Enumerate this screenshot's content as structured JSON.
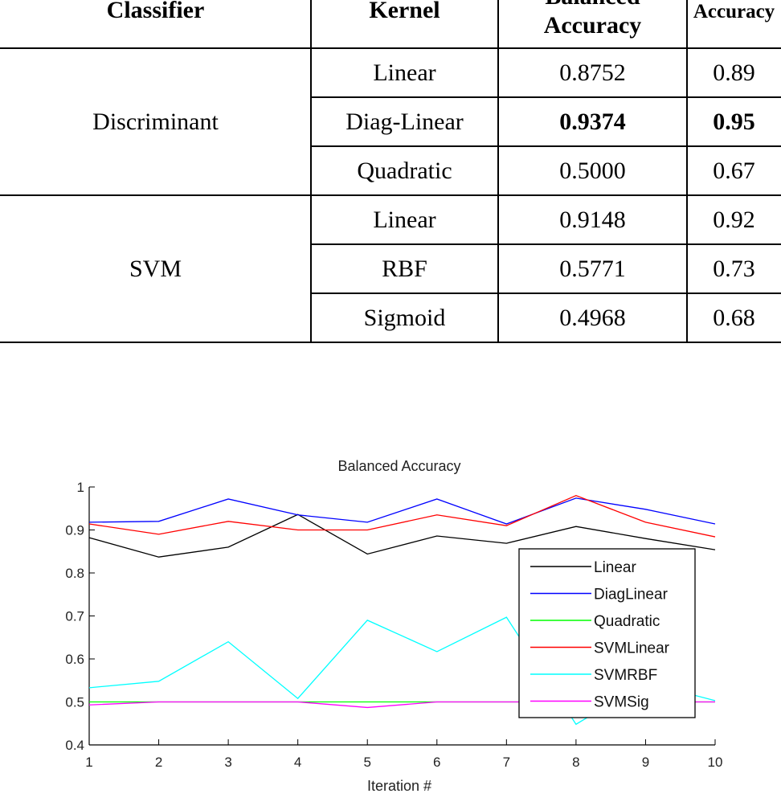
{
  "table": {
    "headers": [
      "Classifier",
      "Kernel",
      "Balanced",
      "Accuracy",
      "Accuracy"
    ],
    "groups": [
      {
        "classifier": "Discriminant",
        "rows": [
          {
            "kernel": "Linear",
            "balanced_accuracy": "0.8752",
            "accuracy": "0.89",
            "bold": false
          },
          {
            "kernel": "Diag-Linear",
            "balanced_accuracy": "0.9374",
            "accuracy": "0.95",
            "bold": true
          },
          {
            "kernel": "Quadratic",
            "balanced_accuracy": "0.5000",
            "accuracy": "0.67",
            "bold": false
          }
        ]
      },
      {
        "classifier": "SVM",
        "rows": [
          {
            "kernel": "Linear",
            "balanced_accuracy": "0.9148",
            "accuracy": "0.92",
            "bold": false
          },
          {
            "kernel": "RBF",
            "balanced_accuracy": "0.5771",
            "accuracy": "0.73",
            "bold": false
          },
          {
            "kernel": "Sigmoid",
            "balanced_accuracy": "0.4968",
            "accuracy": "0.68",
            "bold": false
          }
        ]
      }
    ]
  },
  "chart_data": {
    "type": "line",
    "title": "Balanced Accuracy",
    "xlabel": "Iteration #",
    "ylabel": "",
    "x": [
      1,
      2,
      3,
      4,
      5,
      6,
      7,
      8,
      9,
      10
    ],
    "xlim": [
      1,
      10
    ],
    "ylim": [
      0.4,
      1
    ],
    "xticks": [
      "1",
      "2",
      "3",
      "4",
      "5",
      "6",
      "7",
      "8",
      "9",
      "10"
    ],
    "yticks": [
      "0.4",
      "0.5",
      "0.6",
      "0.7",
      "0.8",
      "0.9",
      "1"
    ],
    "grid": false,
    "legend_position": "lower-right",
    "series": [
      {
        "name": "Linear",
        "color": "#000000",
        "values": [
          0.882,
          0.837,
          0.86,
          0.936,
          0.844,
          0.886,
          0.869,
          0.908,
          0.88,
          0.854
        ]
      },
      {
        "name": "DiagLinear",
        "color": "#0000ff",
        "values": [
          0.918,
          0.92,
          0.972,
          0.935,
          0.918,
          0.972,
          0.914,
          0.974,
          0.948,
          0.914
        ]
      },
      {
        "name": "Quadratic",
        "color": "#00ff00",
        "values": [
          0.5,
          0.5,
          0.5,
          0.5,
          0.5,
          0.5,
          0.5,
          0.5,
          0.5,
          0.5
        ]
      },
      {
        "name": "SVMLinear",
        "color": "#ff0000",
        "values": [
          0.914,
          0.89,
          0.92,
          0.9,
          0.9,
          0.935,
          0.91,
          0.98,
          0.918,
          0.884
        ]
      },
      {
        "name": "SVMRBF",
        "color": "#00ffff",
        "values": [
          0.533,
          0.548,
          0.64,
          0.508,
          0.69,
          0.617,
          0.697,
          0.448,
          0.545,
          0.503
        ]
      },
      {
        "name": "SVMSig",
        "color": "#ff00ff",
        "values": [
          0.493,
          0.5,
          0.5,
          0.5,
          0.487,
          0.5,
          0.5,
          0.5,
          0.5,
          0.5
        ]
      }
    ]
  }
}
